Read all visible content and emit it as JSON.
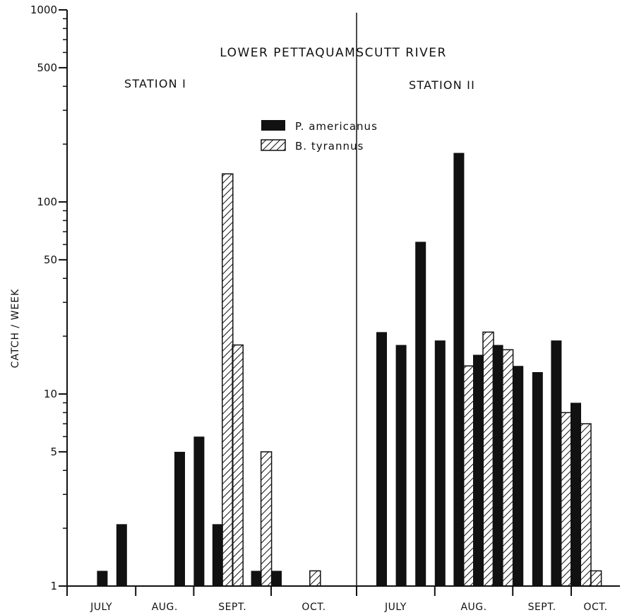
{
  "chart_data": {
    "type": "bar",
    "title": "LOWER PETTAQUAMSCUTT RIVER",
    "ylabel": "CATCH / WEEK",
    "xlabel": "",
    "yscale": "log",
    "ylim": [
      1,
      1000
    ],
    "yticks": [
      1,
      5,
      10,
      50,
      100,
      500,
      1000
    ],
    "grid": false,
    "legend_position": "top-center",
    "series": [
      {
        "name": "P. americanus",
        "fill": "solid",
        "color": "#111111"
      },
      {
        "name": "B. tyrannus",
        "fill": "hatched",
        "color": "#111111"
      }
    ],
    "panels": [
      {
        "label": "STATION I",
        "months": [
          "JULY",
          "AUG.",
          "SEPT.",
          "OCT."
        ],
        "weeks": 13,
        "month_boundaries_after_week": [
          3,
          6,
          10
        ],
        "p_americanus": [
          0,
          1.2,
          2.1,
          0,
          0,
          5,
          6,
          2.1,
          0,
          1.2,
          1.2,
          0,
          0
        ],
        "b_tyrannus": [
          0,
          0,
          0,
          0,
          0,
          0,
          0,
          140,
          18,
          5,
          0,
          0,
          1.2
        ]
      },
      {
        "label": "STATION II",
        "months": [
          "JULY",
          "AUG.",
          "SEPT.",
          "OCT."
        ],
        "weeks": 12,
        "month_boundaries_after_week": [
          3,
          7,
          10
        ],
        "p_americanus": [
          21,
          18,
          62,
          19,
          180,
          16,
          18,
          14,
          13,
          19,
          9,
          0
        ],
        "b_tyrannus": [
          0,
          0,
          0,
          0,
          14,
          21,
          17,
          0,
          0,
          8,
          7,
          1.2
        ]
      }
    ]
  }
}
